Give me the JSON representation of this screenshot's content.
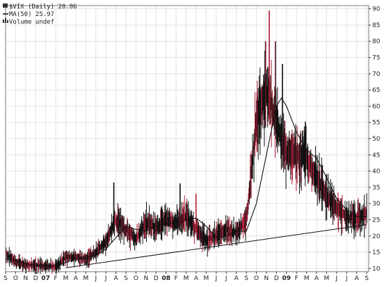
{
  "legend": {
    "symbol_line": "$VIX (Daily) 28.86",
    "ma_line": "MA(50) 25.97",
    "volume_line": "Volume undef"
  },
  "colors": {
    "up_bar": "#111111",
    "down_bar": "#b0203a",
    "ma_line": "#111111",
    "trend_line": "#111111",
    "grid": "#e3e3e3",
    "frame": "#777777"
  },
  "chart_data": {
    "type": "line",
    "title": "$VIX (Daily) 28.86",
    "ylim": [
      9,
      91
    ],
    "y_ticks": [
      10,
      15,
      20,
      25,
      30,
      35,
      40,
      45,
      50,
      55,
      60,
      65,
      70,
      75,
      80,
      85,
      90
    ],
    "y_axis_side": "right",
    "grid": true,
    "x_ticks": [
      {
        "label": "S",
        "month": 0
      },
      {
        "label": "O",
        "month": 1
      },
      {
        "label": "N",
        "month": 2
      },
      {
        "label": "D",
        "month": 3
      },
      {
        "label": "07",
        "month": 4,
        "year": true
      },
      {
        "label": "F",
        "month": 5
      },
      {
        "label": "M",
        "month": 6
      },
      {
        "label": "A",
        "month": 7
      },
      {
        "label": "M",
        "month": 8
      },
      {
        "label": "J",
        "month": 9
      },
      {
        "label": "J",
        "month": 10
      },
      {
        "label": "A",
        "month": 11
      },
      {
        "label": "S",
        "month": 12
      },
      {
        "label": "O",
        "month": 13
      },
      {
        "label": "N",
        "month": 14
      },
      {
        "label": "D",
        "month": 15
      },
      {
        "label": "08",
        "month": 16,
        "year": true
      },
      {
        "label": "F",
        "month": 17
      },
      {
        "label": "M",
        "month": 18
      },
      {
        "label": "A",
        "month": 19
      },
      {
        "label": "M",
        "month": 20
      },
      {
        "label": "J",
        "month": 21
      },
      {
        "label": "J",
        "month": 22
      },
      {
        "label": "A",
        "month": 23
      },
      {
        "label": "S",
        "month": 24
      },
      {
        "label": "O",
        "month": 25
      },
      {
        "label": "N",
        "month": 26
      },
      {
        "label": "D",
        "month": 27
      },
      {
        "label": "09",
        "month": 28,
        "year": true
      },
      {
        "label": "F",
        "month": 29
      },
      {
        "label": "M",
        "month": 30
      },
      {
        "label": "A",
        "month": 31
      },
      {
        "label": "M",
        "month": 32
      },
      {
        "label": "J",
        "month": 33
      },
      {
        "label": "J",
        "month": 34
      },
      {
        "label": "A",
        "month": 35
      },
      {
        "label": "S",
        "month": 36
      }
    ],
    "x_range_months": [
      0,
      36.2
    ],
    "series": [
      {
        "name": "$VIX",
        "style": "daily-hilo-bars",
        "anchors": [
          [
            0,
            14.5
          ],
          [
            1,
            12.2
          ],
          [
            2,
            11.0
          ],
          [
            3,
            11.0
          ],
          [
            4,
            10.8
          ],
          [
            5,
            10.5
          ],
          [
            6,
            13.5
          ],
          [
            7,
            13.5
          ],
          [
            8,
            13.0
          ],
          [
            9,
            15.0
          ],
          [
            10,
            18.0
          ],
          [
            11,
            25.0
          ],
          [
            12,
            22.0
          ],
          [
            13,
            19.0
          ],
          [
            14,
            24.0
          ],
          [
            15,
            22.5
          ],
          [
            16,
            25.0
          ],
          [
            17,
            24.0
          ],
          [
            18,
            26.0
          ],
          [
            19,
            22.0
          ],
          [
            20,
            18.5
          ],
          [
            21,
            20.5
          ],
          [
            22,
            22.0
          ],
          [
            23,
            21.0
          ],
          [
            24,
            25.0
          ],
          [
            25,
            55.0
          ],
          [
            26,
            65.0
          ],
          [
            27,
            55.0
          ],
          [
            28,
            45.0
          ],
          [
            29,
            45.0
          ],
          [
            30,
            44.0
          ],
          [
            31,
            38.0
          ],
          [
            32,
            32.0
          ],
          [
            33,
            29.0
          ],
          [
            34,
            26.0
          ],
          [
            35,
            25.0
          ],
          [
            36,
            27.0
          ]
        ]
      },
      {
        "name": "MA(50)",
        "style": "line",
        "points": [
          [
            0,
            13.0
          ],
          [
            1,
            12.5
          ],
          [
            2,
            11.5
          ],
          [
            3,
            11.0
          ],
          [
            4,
            10.9
          ],
          [
            5,
            10.8
          ],
          [
            6,
            11.8
          ],
          [
            7,
            13.0
          ],
          [
            8,
            13.3
          ],
          [
            9,
            14.0
          ],
          [
            10,
            16.0
          ],
          [
            11,
            19.5
          ],
          [
            12,
            23.0
          ],
          [
            13,
            22.0
          ],
          [
            14,
            21.5
          ],
          [
            15,
            23.0
          ],
          [
            16,
            23.8
          ],
          [
            17,
            24.0
          ],
          [
            18,
            25.0
          ],
          [
            19,
            25.5
          ],
          [
            20,
            23.0
          ],
          [
            21,
            19.5
          ],
          [
            22,
            20.0
          ],
          [
            23,
            21.5
          ],
          [
            24,
            21.5
          ],
          [
            25,
            30.0
          ],
          [
            26,
            45.0
          ],
          [
            27,
            60.0
          ],
          [
            27.5,
            62.5
          ],
          [
            28,
            60.0
          ],
          [
            29,
            52.0
          ],
          [
            30,
            46.5
          ],
          [
            31,
            44.0
          ],
          [
            32,
            38.0
          ],
          [
            33,
            31.5
          ],
          [
            34,
            28.0
          ],
          [
            35,
            26.0
          ],
          [
            36,
            26.0
          ]
        ]
      },
      {
        "name": "trendline",
        "style": "line",
        "points": [
          [
            6,
            10.2
          ],
          [
            36,
            23.5
          ]
        ]
      }
    ]
  }
}
